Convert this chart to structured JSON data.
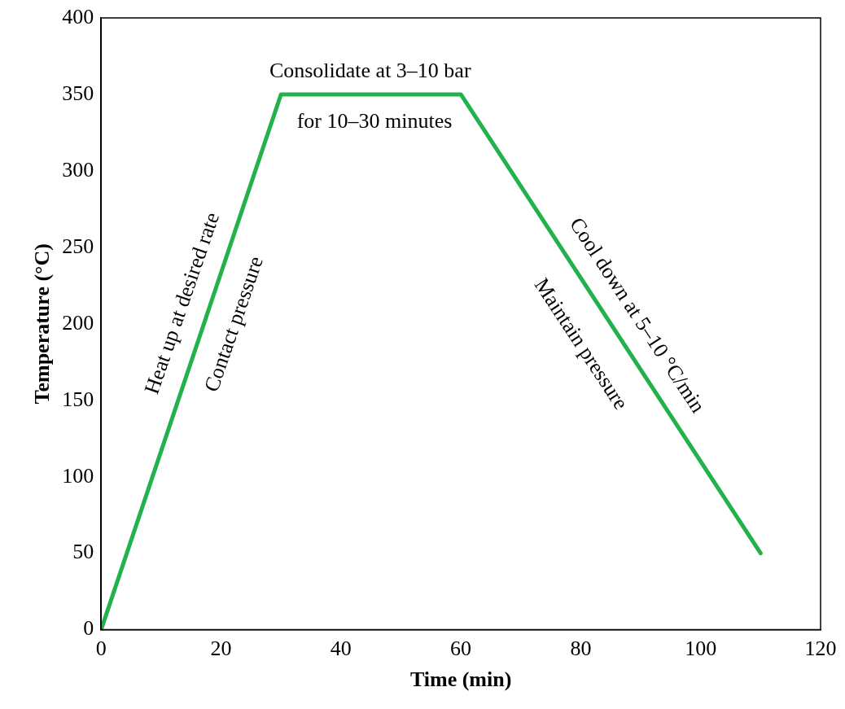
{
  "chart_data": {
    "type": "line",
    "xlabel": "Time (min)",
    "ylabel": "Temperature (°C)",
    "x": [
      0,
      30,
      60,
      110
    ],
    "values": [
      0,
      350,
      350,
      50
    ],
    "color": "#22b14c",
    "xlim": [
      0,
      120
    ],
    "xticks": [
      0,
      20,
      40,
      60,
      80,
      100,
      120
    ],
    "ylim": [
      0,
      400
    ],
    "yticks": [
      0,
      50,
      100,
      150,
      200,
      250,
      300,
      350,
      400
    ],
    "annotations": [
      "Heat up at desired rate",
      "Contact pressure",
      "Consolidate at 3–10 bar",
      "for 10–30 minutes",
      "Cool down at 5–10 °C/min",
      "Maintain pressure"
    ]
  }
}
